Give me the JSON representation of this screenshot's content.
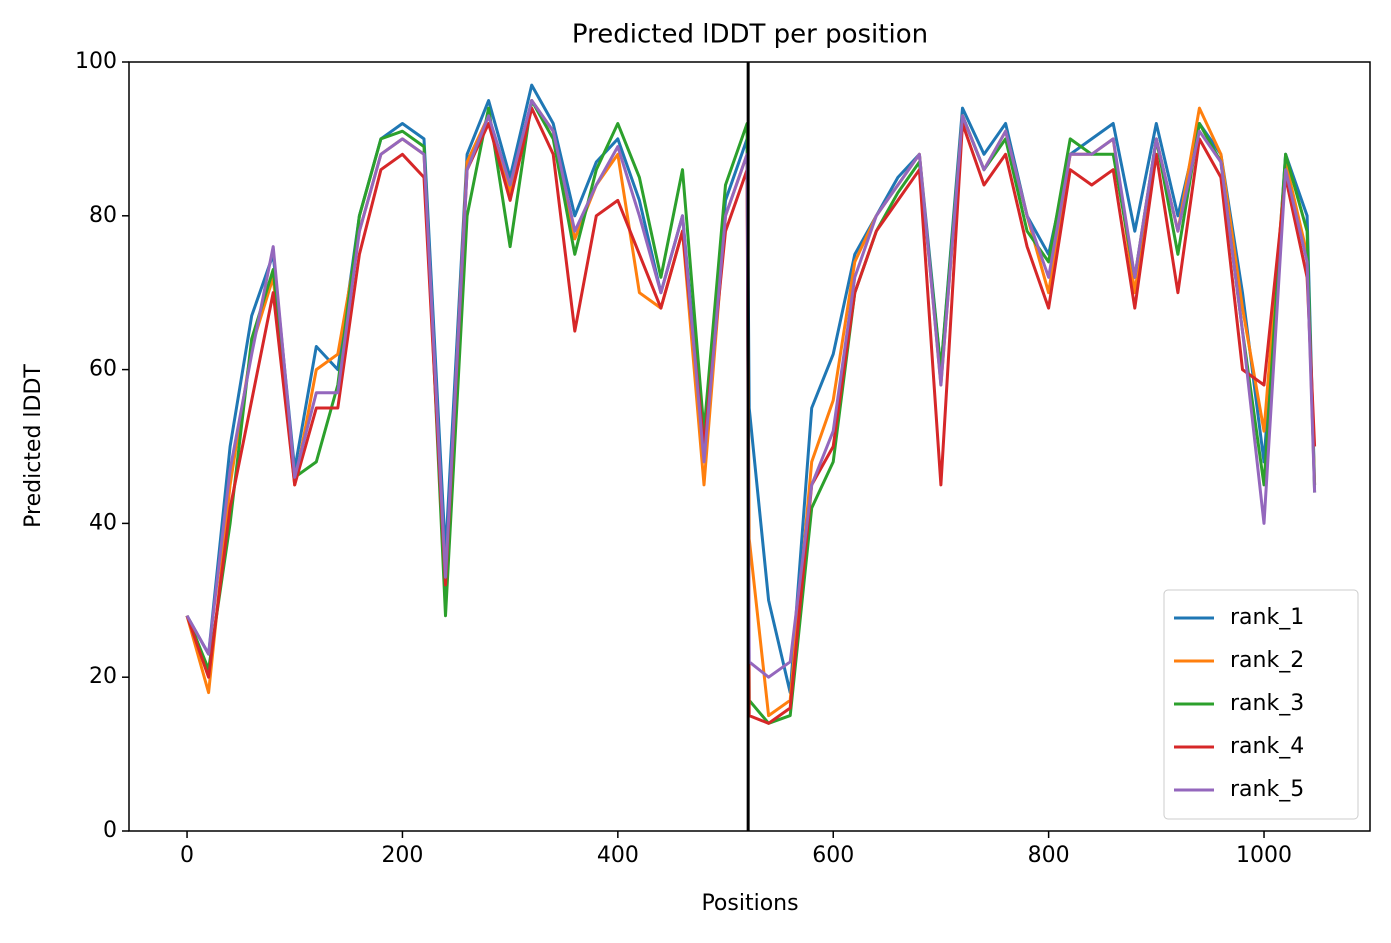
{
  "chart_data": {
    "type": "line",
    "title": "Predicted lDDT per position",
    "xlabel": "Positions",
    "ylabel": "Predicted lDDT",
    "x": [
      0,
      20,
      40,
      60,
      80,
      100,
      120,
      140,
      160,
      180,
      200,
      220,
      240,
      260,
      280,
      300,
      320,
      340,
      360,
      380,
      400,
      420,
      440,
      460,
      480,
      500,
      520,
      522,
      540,
      560,
      580,
      600,
      620,
      640,
      660,
      680,
      700,
      720,
      740,
      760,
      780,
      800,
      820,
      840,
      860,
      880,
      900,
      920,
      940,
      960,
      980,
      1000,
      1020,
      1040,
      1047
    ],
    "series": [
      {
        "name": "rank_1",
        "color": "#1f77b4",
        "values": [
          28,
          23,
          50,
          67,
          75,
          47,
          63,
          60,
          80,
          90,
          92,
          90,
          36,
          88,
          95,
          85,
          97,
          92,
          80,
          87,
          90,
          82,
          70,
          80,
          50,
          82,
          90,
          55,
          30,
          18,
          55,
          62,
          75,
          80,
          85,
          88,
          60,
          94,
          88,
          92,
          80,
          75,
          88,
          90,
          92,
          78,
          92,
          80,
          92,
          88,
          70,
          48,
          88,
          80,
          45
        ]
      },
      {
        "name": "rank_2",
        "color": "#ff7f0e",
        "values": [
          28,
          18,
          45,
          63,
          72,
          45,
          60,
          62,
          78,
          88,
          90,
          88,
          32,
          87,
          93,
          83,
          95,
          91,
          77,
          84,
          88,
          70,
          68,
          78,
          45,
          80,
          88,
          38,
          15,
          17,
          48,
          56,
          74,
          80,
          84,
          88,
          58,
          93,
          86,
          91,
          80,
          70,
          88,
          88,
          90,
          70,
          90,
          78,
          94,
          88,
          68,
          52,
          87,
          75,
          45
        ]
      },
      {
        "name": "rank_3",
        "color": "#2ca02c",
        "values": [
          28,
          21,
          40,
          64,
          73,
          46,
          48,
          58,
          80,
          90,
          91,
          89,
          28,
          80,
          94,
          76,
          95,
          90,
          75,
          86,
          92,
          85,
          72,
          86,
          52,
          84,
          92,
          17,
          14,
          15,
          42,
          48,
          70,
          78,
          83,
          87,
          60,
          93,
          86,
          90,
          78,
          74,
          90,
          88,
          88,
          72,
          90,
          75,
          92,
          87,
          65,
          45,
          88,
          78,
          44
        ]
      },
      {
        "name": "rank_4",
        "color": "#d62728",
        "values": [
          28,
          20,
          42,
          56,
          70,
          45,
          55,
          55,
          75,
          86,
          88,
          85,
          32,
          86,
          92,
          82,
          94,
          88,
          65,
          80,
          82,
          75,
          68,
          78,
          50,
          78,
          86,
          15,
          14,
          16,
          45,
          50,
          70,
          78,
          82,
          86,
          45,
          92,
          84,
          88,
          76,
          68,
          86,
          84,
          86,
          68,
          88,
          70,
          90,
          85,
          60,
          58,
          85,
          72,
          50
        ]
      },
      {
        "name": "rank_5",
        "color": "#9467bd",
        "values": [
          28,
          23,
          47,
          62,
          76,
          46,
          57,
          57,
          78,
          88,
          90,
          88,
          33,
          86,
          93,
          84,
          95,
          91,
          78,
          84,
          89,
          80,
          70,
          80,
          48,
          80,
          88,
          22,
          20,
          22,
          45,
          52,
          72,
          80,
          84,
          88,
          58,
          93,
          86,
          91,
          80,
          72,
          88,
          88,
          90,
          72,
          90,
          78,
          91,
          87,
          65,
          40,
          86,
          74,
          44
        ]
      }
    ],
    "xlim": [
      -53.9,
      1098.4
    ],
    "xticks": [
      0,
      200,
      400,
      600,
      800,
      1000
    ],
    "ylim": [
      0,
      100
    ],
    "yticks": [
      0,
      20,
      40,
      60,
      80,
      100
    ],
    "vline": {
      "x": 521,
      "color": "#000000"
    },
    "legend": "lower right"
  }
}
